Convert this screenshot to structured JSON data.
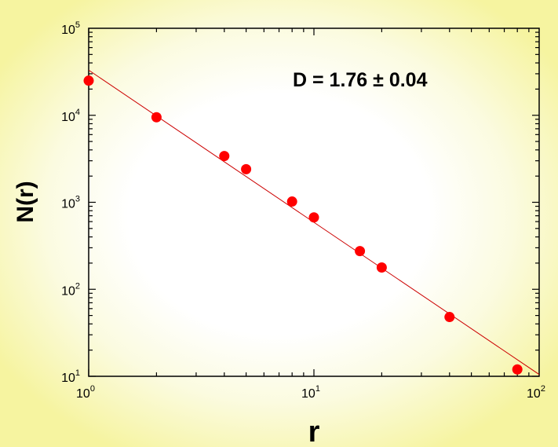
{
  "chart_data": {
    "type": "scatter",
    "xlabel": "r",
    "ylabel": "N(r)",
    "x_scale": "log",
    "y_scale": "log",
    "xlim": [
      1,
      100
    ],
    "ylim": [
      10,
      100000
    ],
    "grid": false,
    "x_ticks": [
      {
        "base": "10",
        "exp": "0",
        "value": 1
      },
      {
        "base": "10",
        "exp": "1",
        "value": 10
      },
      {
        "base": "10",
        "exp": "2",
        "value": 100
      }
    ],
    "y_ticks": [
      {
        "base": "10",
        "exp": "1",
        "value": 10
      },
      {
        "base": "10",
        "exp": "2",
        "value": 100
      },
      {
        "base": "10",
        "exp": "3",
        "value": 1000
      },
      {
        "base": "10",
        "exp": "4",
        "value": 10000
      },
      {
        "base": "10",
        "exp": "5",
        "value": 100000
      }
    ],
    "points": [
      {
        "x": 1,
        "y": 25000
      },
      {
        "x": 2,
        "y": 9500
      },
      {
        "x": 4,
        "y": 3400
      },
      {
        "x": 5,
        "y": 2400
      },
      {
        "x": 8,
        "y": 1020
      },
      {
        "x": 10,
        "y": 670
      },
      {
        "x": 16,
        "y": 275
      },
      {
        "x": 20,
        "y": 178
      },
      {
        "x": 40,
        "y": 48
      },
      {
        "x": 80,
        "y": 12
      }
    ],
    "fit_line": {
      "x": [
        1,
        100
      ],
      "y": [
        33000,
        10.5
      ]
    },
    "annotation": "D = 1.76  ± 0.04",
    "colors": {
      "points": "#ff0000",
      "fit_line": "#cc0000",
      "axes": "#000000"
    }
  }
}
